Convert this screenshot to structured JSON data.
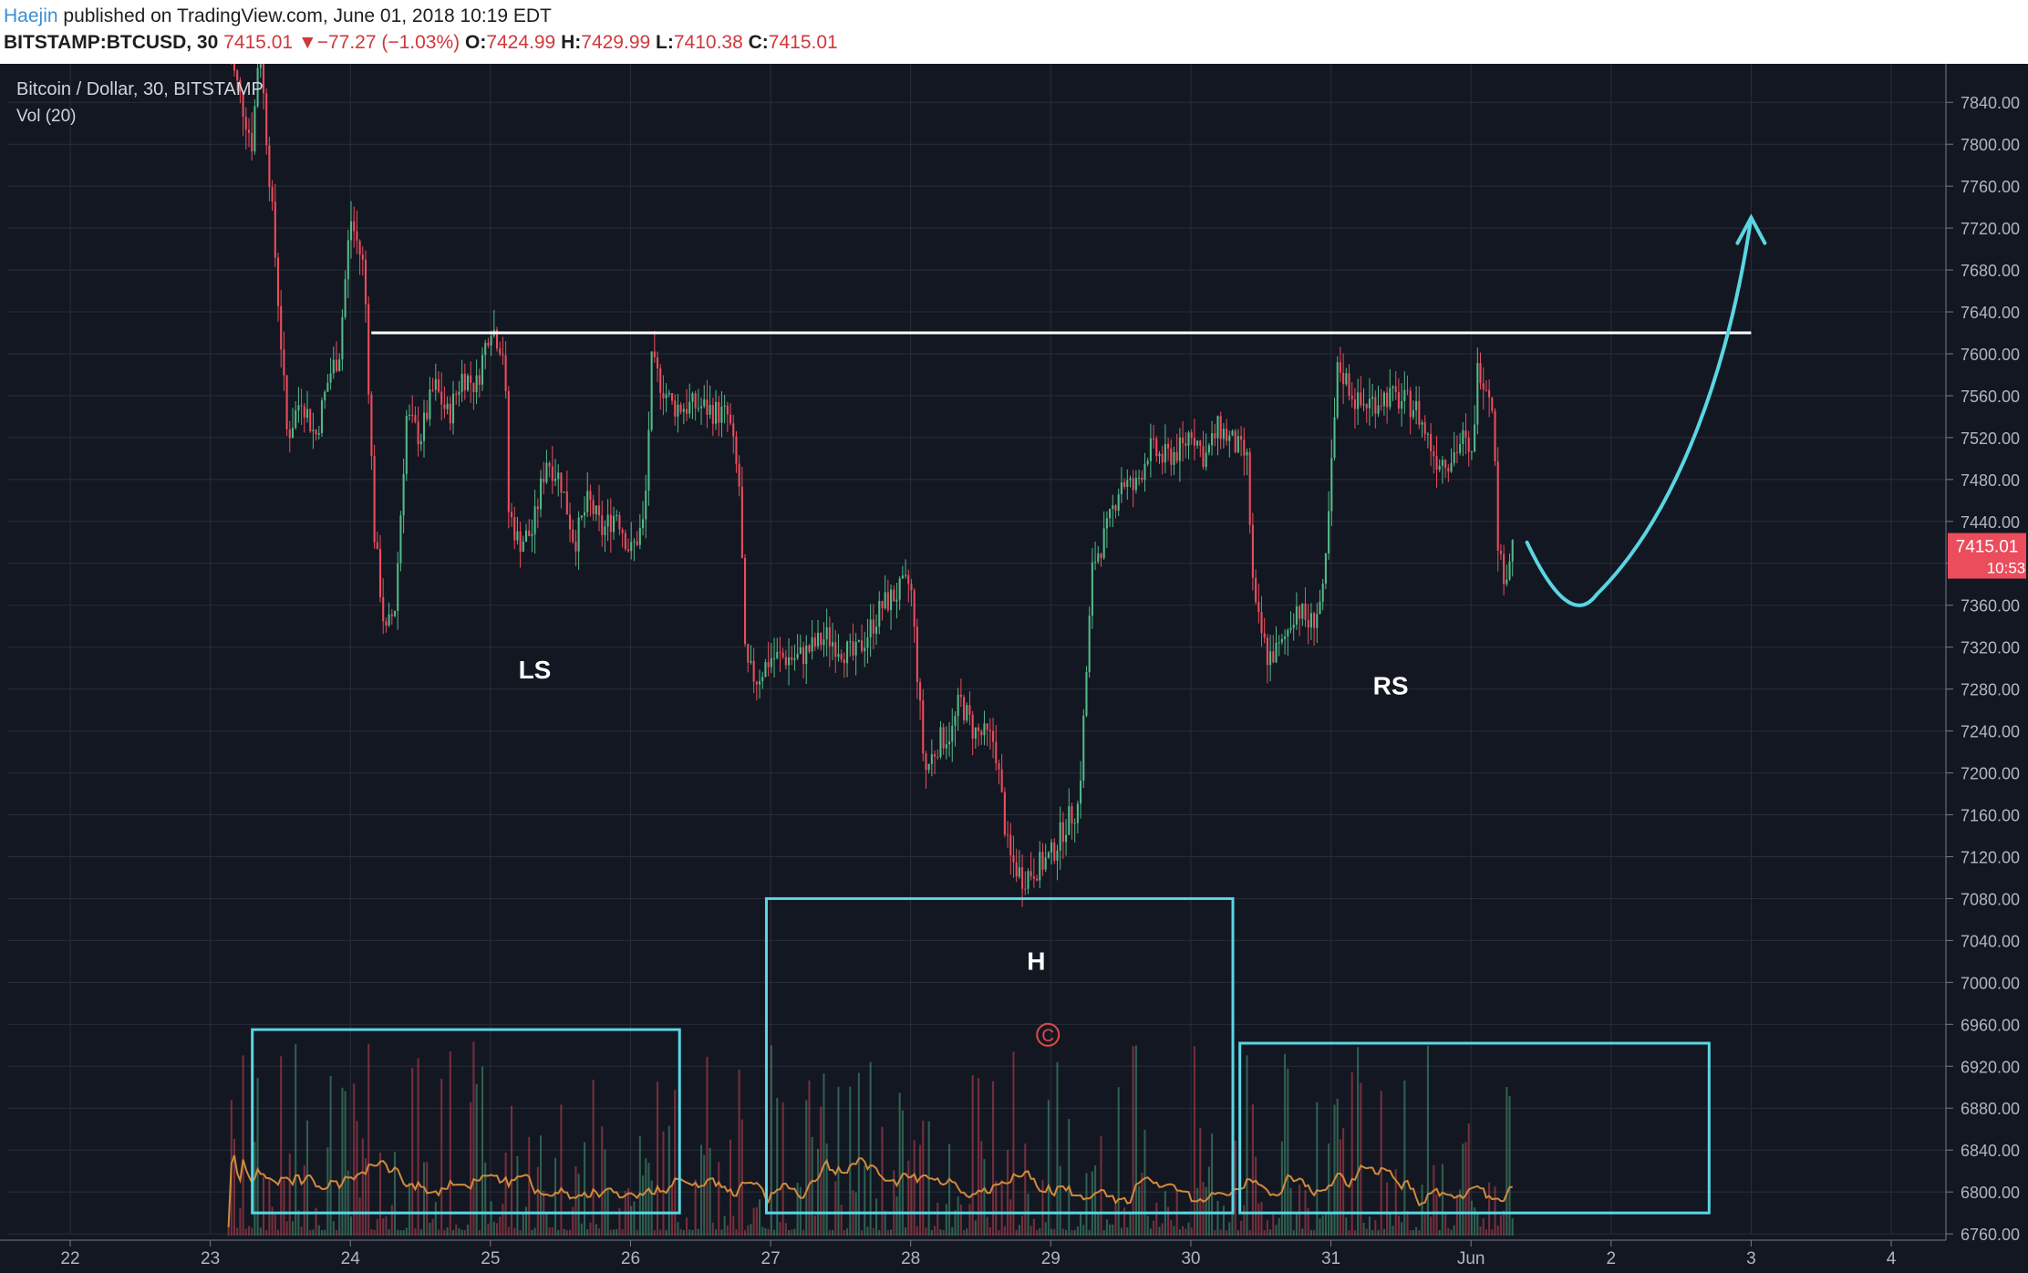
{
  "header": {
    "author": "Haejin",
    "published": "published on TradingView.com, June 01, 2018 10:19 EDT",
    "symbol": "BITSTAMP:BTCUSD, 30",
    "last": "7415.01",
    "change_arrow": "▼",
    "change": "−77.27 (−1.03%)",
    "open_label": "O:",
    "open": "7424.99",
    "high_label": "H:",
    "high": "7429.99",
    "low_label": "L:",
    "low": "7410.38",
    "close_label": "C:",
    "close": "7415.01"
  },
  "legend": {
    "title": "Bitcoin / Dollar, 30, BITSTAMP",
    "volume": "Vol (20)"
  },
  "price_tag": {
    "price": "7415.01",
    "countdown": "10:53"
  },
  "colors": {
    "background": "#131722",
    "grid": "#2a2e39",
    "up": "#53b987",
    "down": "#eb4d5c",
    "volume_ma": "#d08a3c",
    "annotation_cyan": "#5ad6e3",
    "neckline": "#ffffff",
    "price_tag": "#eb4d5c"
  },
  "chart_data": {
    "type": "candlestick",
    "interval": "30 minutes",
    "y_range": [
      6754,
      7855
    ],
    "y_ticks": [
      7840,
      7800,
      7760,
      7720,
      7680,
      7640,
      7600,
      7560,
      7520,
      7480,
      7440,
      7400,
      7360,
      7320,
      7280,
      7240,
      7200,
      7160,
      7120,
      7080,
      7040,
      7000,
      6960,
      6920,
      6880,
      6840,
      6800,
      6760
    ],
    "x_range_days": [
      21.55,
      25.35
    ],
    "x_ticks": [
      {
        "d": 22,
        "label": "22"
      },
      {
        "d": 23,
        "label": "23"
      },
      {
        "d": 24,
        "label": "24"
      },
      {
        "d": 25,
        "label": "25"
      },
      {
        "d": 26,
        "label": "26"
      },
      {
        "d": 27,
        "label": "27"
      },
      {
        "d": 28,
        "label": "28"
      },
      {
        "d": 29,
        "label": "29"
      },
      {
        "d": 30,
        "label": "30"
      },
      {
        "d": 31,
        "label": "31"
      },
      {
        "d": 32,
        "label": "Jun"
      },
      {
        "d": 33,
        "label": "2"
      },
      {
        "d": 34,
        "label": "3"
      },
      {
        "d": 35,
        "label": "4"
      }
    ],
    "price_path": [
      [
        23.13,
        7890
      ],
      [
        23.3,
        7800
      ],
      [
        23.35,
        7900
      ],
      [
        23.45,
        7720
      ],
      [
        23.55,
        7520
      ],
      [
        23.65,
        7560
      ],
      [
        23.75,
        7520
      ],
      [
        23.85,
        7580
      ],
      [
        23.92,
        7600
      ],
      [
        24.0,
        7730
      ],
      [
        24.1,
        7680
      ],
      [
        24.17,
        7430
      ],
      [
        24.25,
        7330
      ],
      [
        24.32,
        7360
      ],
      [
        24.4,
        7540
      ],
      [
        24.5,
        7520
      ],
      [
        24.6,
        7570
      ],
      [
        24.7,
        7540
      ],
      [
        24.8,
        7580
      ],
      [
        24.9,
        7570
      ],
      [
        25.0,
        7630
      ],
      [
        25.1,
        7600
      ],
      [
        25.13,
        7450
      ],
      [
        25.2,
        7420
      ],
      [
        25.3,
        7430
      ],
      [
        25.4,
        7500
      ],
      [
        25.5,
        7480
      ],
      [
        25.6,
        7420
      ],
      [
        25.7,
        7460
      ],
      [
        25.8,
        7430
      ],
      [
        25.9,
        7450
      ],
      [
        26.0,
        7410
      ],
      [
        26.1,
        7440
      ],
      [
        26.15,
        7590
      ],
      [
        26.3,
        7550
      ],
      [
        26.5,
        7550
      ],
      [
        26.7,
        7540
      ],
      [
        26.78,
        7470
      ],
      [
        26.82,
        7300
      ],
      [
        26.9,
        7290
      ],
      [
        27.0,
        7310
      ],
      [
        27.2,
        7310
      ],
      [
        27.4,
        7330
      ],
      [
        27.6,
        7310
      ],
      [
        27.8,
        7360
      ],
      [
        27.98,
        7380
      ],
      [
        28.0,
        7380
      ],
      [
        28.1,
        7200
      ],
      [
        28.2,
        7230
      ],
      [
        28.3,
        7240
      ],
      [
        28.35,
        7270
      ],
      [
        28.45,
        7240
      ],
      [
        28.6,
        7230
      ],
      [
        28.7,
        7120
      ],
      [
        28.8,
        7100
      ],
      [
        28.9,
        7110
      ],
      [
        29.0,
        7120
      ],
      [
        29.1,
        7150
      ],
      [
        29.2,
        7170
      ],
      [
        29.3,
        7400
      ],
      [
        29.4,
        7430
      ],
      [
        29.5,
        7480
      ],
      [
        29.6,
        7470
      ],
      [
        29.7,
        7510
      ],
      [
        29.8,
        7500
      ],
      [
        29.95,
        7510
      ],
      [
        30.0,
        7530
      ],
      [
        30.1,
        7500
      ],
      [
        30.2,
        7530
      ],
      [
        30.4,
        7500
      ],
      [
        30.45,
        7360
      ],
      [
        30.55,
        7310
      ],
      [
        30.65,
        7320
      ],
      [
        30.75,
        7360
      ],
      [
        30.85,
        7340
      ],
      [
        30.95,
        7370
      ],
      [
        31.0,
        7480
      ],
      [
        31.05,
        7590
      ],
      [
        31.2,
        7550
      ],
      [
        31.4,
        7560
      ],
      [
        31.6,
        7550
      ],
      [
        31.75,
        7500
      ],
      [
        31.85,
        7500
      ],
      [
        31.95,
        7520
      ],
      [
        32.0,
        7490
      ],
      [
        32.05,
        7590
      ],
      [
        32.15,
        7560
      ],
      [
        32.2,
        7400
      ],
      [
        32.25,
        7390
      ],
      [
        32.3,
        7420
      ]
    ],
    "annotations": [
      {
        "kind": "label",
        "text": "LS",
        "d": 25.2,
        "price": 7290
      },
      {
        "kind": "label",
        "text": "H",
        "d": 28.83,
        "price": 7012
      },
      {
        "kind": "label",
        "text": "RS",
        "d": 31.3,
        "price": 7275
      },
      {
        "kind": "label",
        "text": "C",
        "d": 28.98,
        "price": 6950
      },
      {
        "kind": "neckline",
        "from": [
          24.15,
          7620
        ],
        "to": [
          34.0,
          7620
        ]
      },
      {
        "kind": "box",
        "from": [
          23.3,
          6955
        ],
        "to": [
          26.35,
          6780
        ]
      },
      {
        "kind": "box",
        "from": [
          26.97,
          7080
        ],
        "to": [
          30.3,
          6780
        ]
      },
      {
        "kind": "box",
        "from": [
          30.35,
          6942
        ],
        "to": [
          33.7,
          6780
        ]
      },
      {
        "kind": "projection_arrow",
        "path": [
          [
            32.4,
            7420
          ],
          [
            32.7,
            7370
          ],
          [
            33.5,
            7450
          ],
          [
            33.85,
            7560
          ],
          [
            34.0,
            7730
          ]
        ]
      }
    ]
  }
}
